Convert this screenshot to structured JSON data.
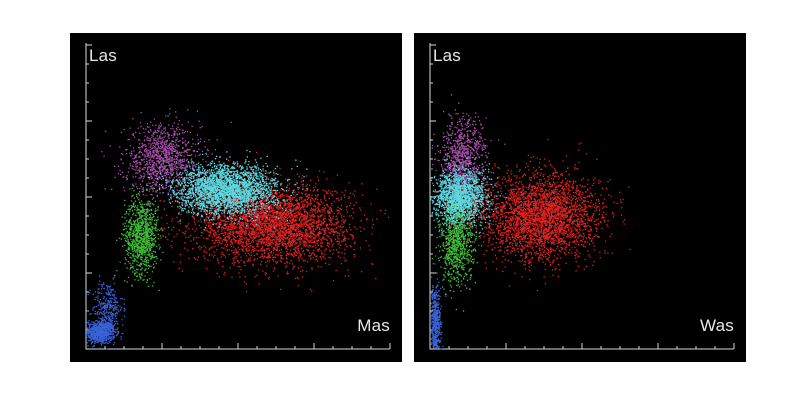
{
  "chart_data": [
    {
      "type": "scatter",
      "title": "",
      "xlabel": "Mas",
      "ylabel": "Las",
      "xlim": [
        0,
        8
      ],
      "ylim": [
        0,
        8
      ],
      "grid": false,
      "series": [
        {
          "color": "#3a63d8",
          "clusters": [
            {
              "cx": 0.35,
              "cy": 0.45,
              "sx": 0.2,
              "sy": 0.15,
              "n": 700
            },
            {
              "cx": 0.55,
              "cy": 1.1,
              "sx": 0.2,
              "sy": 0.35,
              "n": 300
            }
          ]
        },
        {
          "color": "#3fbf3a",
          "clusters": [
            {
              "cx": 1.45,
              "cy": 3.0,
              "sx": 0.22,
              "sy": 0.5,
              "n": 900
            }
          ]
        },
        {
          "color": "#a64ea8",
          "clusters": [
            {
              "cx": 2.0,
              "cy": 5.0,
              "sx": 0.5,
              "sy": 0.45,
              "n": 1100
            }
          ]
        },
        {
          "color": "#e02222",
          "clusters": [
            {
              "cx": 4.9,
              "cy": 3.3,
              "sx": 1.0,
              "sy": 0.5,
              "n": 3500
            }
          ]
        },
        {
          "color": "#60d8e0",
          "clusters": [
            {
              "cx": 3.7,
              "cy": 4.2,
              "sx": 0.65,
              "sy": 0.32,
              "n": 2600
            }
          ]
        }
      ]
    },
    {
      "type": "scatter",
      "title": "",
      "xlabel": "Was",
      "ylabel": "Las",
      "xlim": [
        0,
        8
      ],
      "ylim": [
        0,
        8
      ],
      "grid": false,
      "series": [
        {
          "color": "#3a63d8",
          "clusters": [
            {
              "cx": 0.12,
              "cy": 0.7,
              "sx": 0.07,
              "sy": 0.5,
              "n": 500
            }
          ]
        },
        {
          "color": "#3fbf3a",
          "clusters": [
            {
              "cx": 0.7,
              "cy": 2.9,
              "sx": 0.22,
              "sy": 0.6,
              "n": 900
            }
          ]
        },
        {
          "color": "#a64ea8",
          "clusters": [
            {
              "cx": 0.85,
              "cy": 5.0,
              "sx": 0.3,
              "sy": 0.55,
              "n": 900
            }
          ]
        },
        {
          "color": "#60d8e0",
          "clusters": [
            {
              "cx": 0.8,
              "cy": 4.0,
              "sx": 0.35,
              "sy": 0.35,
              "n": 1600
            }
          ]
        },
        {
          "color": "#e02222",
          "clusters": [
            {
              "cx": 2.9,
              "cy": 3.5,
              "sx": 0.75,
              "sy": 0.55,
              "n": 3000
            }
          ]
        }
      ]
    }
  ]
}
